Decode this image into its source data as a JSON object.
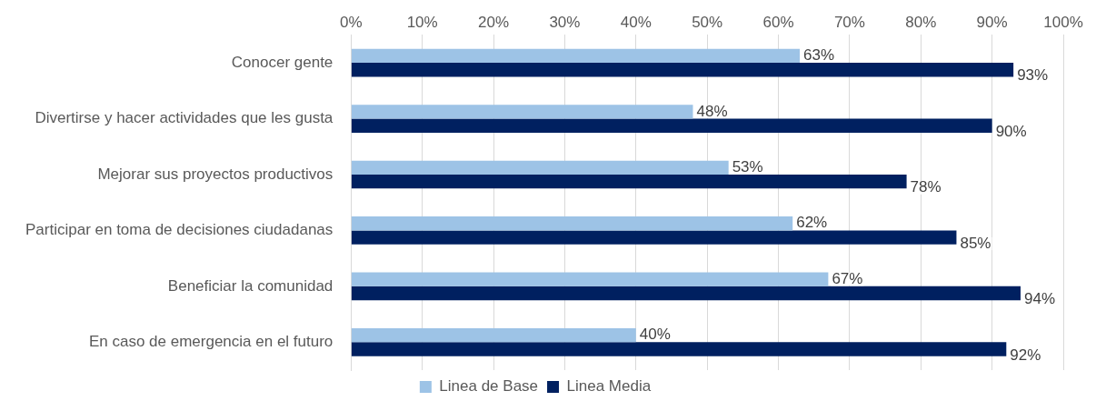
{
  "chart_data": {
    "type": "bar",
    "orientation": "horizontal",
    "categories": [
      "Conocer gente",
      "Divertirse y hacer actividades que les gusta",
      "Mejorar sus proyectos productivos",
      "Participar en toma de decisiones ciudadanas",
      "Beneficiar la comunidad",
      "En caso de emergencia en el futuro"
    ],
    "series": [
      {
        "name": "Linea de Base",
        "color": "#9dc3e6",
        "values": [
          63,
          48,
          53,
          62,
          67,
          40
        ],
        "value_labels": [
          "63%",
          "48%",
          "53%",
          "62%",
          "67%",
          "40%"
        ]
      },
      {
        "name": "Linea Media",
        "color": "#002060",
        "values": [
          93,
          90,
          78,
          85,
          94,
          92
        ],
        "value_labels": [
          "93%",
          "90%",
          "78%",
          "85%",
          "94%",
          "92%"
        ]
      }
    ],
    "xlim": [
      0,
      100
    ],
    "xticks": [
      {
        "value": 0,
        "label": "0%"
      },
      {
        "value": 10,
        "label": "10%"
      },
      {
        "value": 20,
        "label": "20%"
      },
      {
        "value": 30,
        "label": "30%"
      },
      {
        "value": 40,
        "label": "40%"
      },
      {
        "value": 50,
        "label": "50%"
      },
      {
        "value": 60,
        "label": "60%"
      },
      {
        "value": 70,
        "label": "70%"
      },
      {
        "value": 80,
        "label": "80%"
      },
      {
        "value": 90,
        "label": "90%"
      },
      {
        "value": 100,
        "label": "100%"
      }
    ],
    "grid": "x",
    "legend": "bottom"
  }
}
